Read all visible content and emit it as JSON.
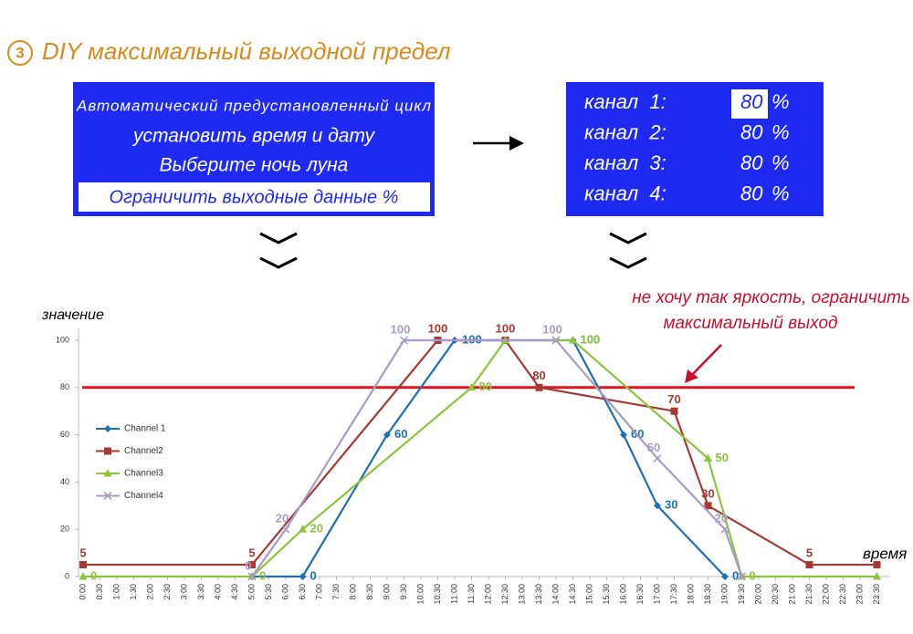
{
  "header": {
    "badge": "③",
    "title": "DIY максимальный выходной предел"
  },
  "menu": {
    "items": [
      "Автоматический предустановленный цикл",
      "установить время и дату",
      "Выберите ночь луна",
      "Ограничить выходные данные %"
    ]
  },
  "channels": [
    {
      "label": "канал  1:",
      "value": 80,
      "unit": "%"
    },
    {
      "label": "канал  2:",
      "value": 80,
      "unit": "%"
    },
    {
      "label": "канал  3:",
      "value": 80,
      "unit": "%"
    },
    {
      "label": "канал  4:",
      "value": 80,
      "unit": "%"
    }
  ],
  "chart_data": {
    "type": "line",
    "y_label": "значение",
    "x_label": "время",
    "annotation": {
      "lines": [
        "не хочу так яркость, ограничить",
        "максимальный выход"
      ],
      "color": "#c8102e"
    },
    "limit_line": {
      "value": 80,
      "color": "#e0141e"
    },
    "categories": [
      "0:00",
      "0:30",
      "1:00",
      "1:30",
      "2:00",
      "2:30",
      "3:00",
      "3:30",
      "4:00",
      "4:30",
      "5:00",
      "5:30",
      "6:00",
      "6:30",
      "7:00",
      "7:30",
      "8:00",
      "8:30",
      "9:00",
      "9:30",
      "10:00",
      "10:30",
      "11:00",
      "11:30",
      "12:00",
      "12:30",
      "13:00",
      "13:30",
      "14:00",
      "14:30",
      "15:00",
      "15:30",
      "16:00",
      "16:30",
      "17:00",
      "17:30",
      "18:00",
      "18:30",
      "19:00",
      "19:30",
      "20:00",
      "20:30",
      "21:00",
      "21:30",
      "22:00",
      "22:30",
      "23:00",
      "23:30"
    ],
    "ylim": [
      0,
      100
    ],
    "yticks": [
      0,
      20,
      40,
      60,
      80,
      100
    ],
    "legend": "left",
    "series": [
      {
        "name": "Channel 1",
        "color": "#1f6fb5",
        "marker": "diamond",
        "x": [
          "5:00",
          "6:30",
          "9:00",
          "11:00",
          "14:30",
          "16:00",
          "17:00",
          "19:00"
        ],
        "values": [
          0,
          0,
          60,
          100,
          100,
          60,
          30,
          0
        ],
        "value_labels": [
          null,
          "0",
          "60",
          "100",
          "100",
          "60",
          "30",
          "0"
        ]
      },
      {
        "name": "Channel2",
        "color": "#a33a36",
        "marker": "square",
        "x": [
          "0:00",
          "5:00",
          "10:30",
          "12:30",
          "13:30",
          "17:30",
          "18:30",
          "21:30",
          "23:30"
        ],
        "values": [
          5,
          5,
          100,
          100,
          80,
          70,
          30,
          5,
          5
        ],
        "value_labels": [
          "5",
          "5",
          "100",
          "100",
          "80",
          "70",
          "30",
          "5",
          null
        ]
      },
      {
        "name": "Channel3",
        "color": "#8cc43c",
        "marker": "triangle",
        "x": [
          "0:00",
          "5:00",
          "6:30",
          "11:30",
          "12:30",
          "14:30",
          "18:30",
          "19:30",
          "23:30"
        ],
        "values": [
          0,
          0,
          20,
          80,
          100,
          100,
          50,
          0,
          0
        ],
        "value_labels": [
          "0",
          "0",
          "20",
          "80",
          null,
          "100",
          "50",
          "0",
          null
        ]
      },
      {
        "name": "Channel4",
        "color": "#a99bc4",
        "marker": "x",
        "x": [
          "5:00",
          "6:00",
          "9:30",
          "14:00",
          "17:00",
          "19:00",
          "19:30"
        ],
        "values": [
          0,
          20,
          100,
          100,
          50,
          20,
          0
        ],
        "value_labels": [
          "0",
          "20",
          "100",
          "100",
          "50",
          "20",
          null
        ]
      }
    ]
  }
}
